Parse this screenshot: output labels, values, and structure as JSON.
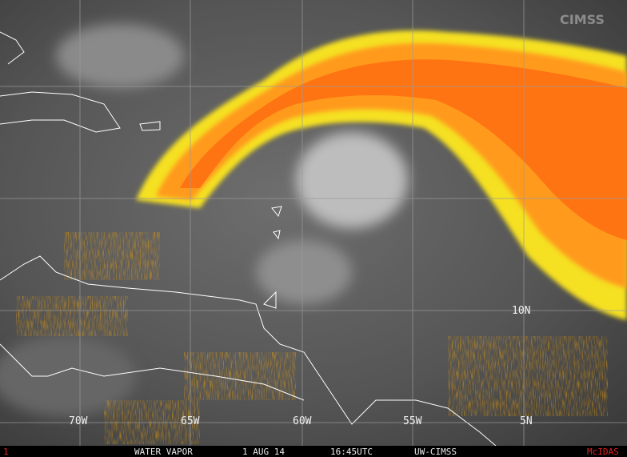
{
  "map": {
    "grid_labels": {
      "latitudes": [
        "10N",
        "5N"
      ],
      "longitudes": [
        "70W",
        "65W",
        "60W",
        "55W"
      ]
    },
    "footer": {
      "frame": "1",
      "product": "WATER VAPOR",
      "date": "1 AUG 14",
      "time": "16:45UTC",
      "source": "UW-CIMSS",
      "software": "McIDAS"
    },
    "logo": "CIMSS"
  }
}
